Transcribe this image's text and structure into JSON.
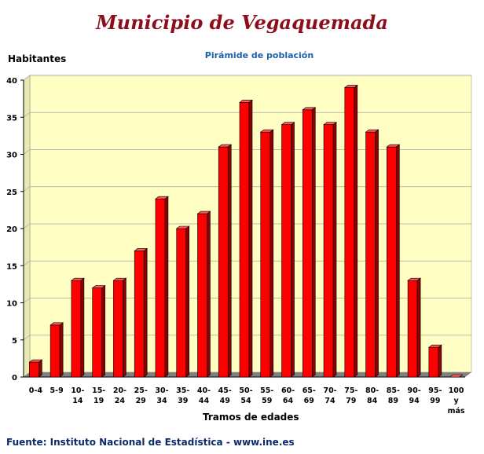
{
  "header": {
    "title": "Municipio de Vegaquemada",
    "footer_source": "Fuente: Instituto Nacional de Estadística - www.ine.es"
  },
  "colors": {
    "bar_front": "#ff0000",
    "bar_side": "#8b0000",
    "bar_top": "#ff5a5a",
    "plot_back": "#ffffc4",
    "floor": "#808080",
    "title": "#8b0e1a"
  },
  "chart_data": {
    "type": "bar",
    "title": "Pirámide de población",
    "ylabel": "Habitantes",
    "xlabel": "Tramos de edades",
    "ylim": [
      0,
      40
    ],
    "yticks": [
      0,
      5,
      10,
      15,
      20,
      25,
      30,
      35,
      40
    ],
    "grid": true,
    "categories": [
      "0-4",
      "5-9",
      "10-14",
      "15-19",
      "20-24",
      "25-29",
      "30-34",
      "35-39",
      "40-44",
      "45-49",
      "50-54",
      "55-59",
      "60-64",
      "65-69",
      "70-74",
      "75-79",
      "80-84",
      "85-89",
      "90-94",
      "95-99",
      "100 y más"
    ],
    "values": [
      2,
      7,
      13,
      12,
      13,
      17,
      24,
      20,
      22,
      31,
      37,
      33,
      34,
      36,
      34,
      39,
      33,
      31,
      13,
      4,
      0
    ]
  }
}
